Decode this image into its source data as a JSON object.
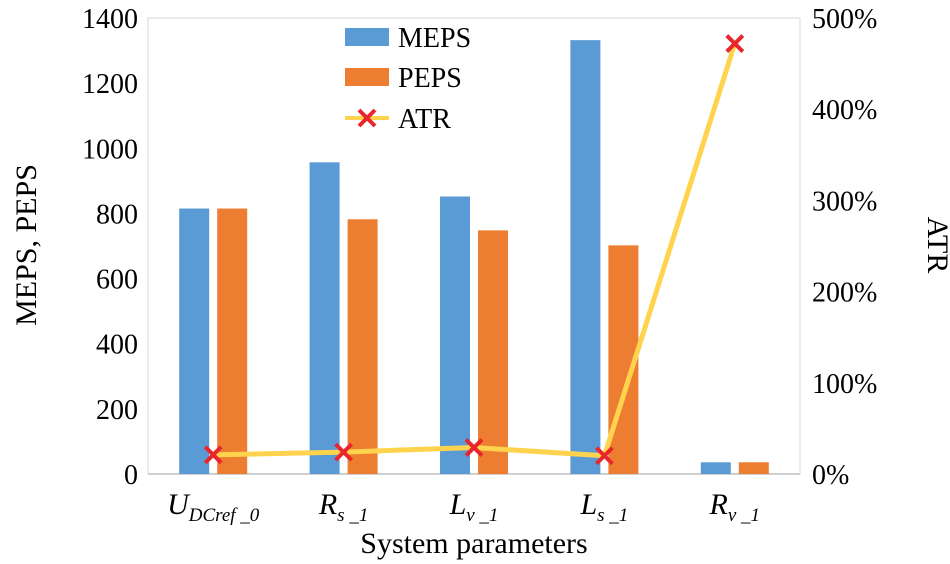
{
  "chart_data": {
    "type": "bar",
    "categories": [
      {
        "main": "U",
        "sub": "DCref _0"
      },
      {
        "main": "R",
        "sub": "s _1"
      },
      {
        "main": "L",
        "sub": "v _1"
      },
      {
        "main": "L",
        "sub": "s _1"
      },
      {
        "main": "R",
        "sub": "v _1"
      }
    ],
    "series": [
      {
        "name": "MEPS",
        "axis": "left",
        "color": "#5B9BD5",
        "values": [
          815,
          957,
          852,
          1332,
          36
        ]
      },
      {
        "name": "PEPS",
        "axis": "left",
        "color": "#ED7D31",
        "values": [
          815,
          782,
          748,
          702,
          36
        ]
      }
    ],
    "line_series": {
      "name": "ATR",
      "axis": "right",
      "color": "#FFD34E",
      "marker_color": "#E8262B",
      "values": [
        21,
        24,
        29,
        20,
        472
      ]
    },
    "xlabel": "System parameters",
    "ylabel_left": "MEPS, PEPS",
    "ylabel_right": "ATR",
    "ylim_left": [
      0,
      1400
    ],
    "ylim_right": [
      0,
      500
    ],
    "yticks_left": [
      "0",
      "200",
      "400",
      "600",
      "800",
      "1000",
      "1200",
      "1400"
    ],
    "yticks_right": [
      "0%",
      "100%",
      "200%",
      "300%",
      "400%",
      "500%"
    ],
    "legend_position": "top-left"
  }
}
